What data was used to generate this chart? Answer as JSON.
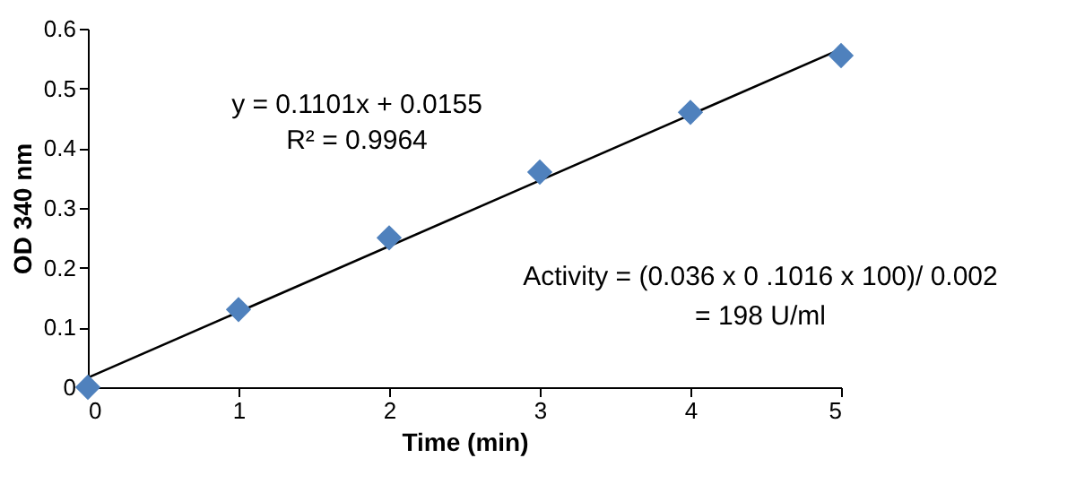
{
  "chart_data": {
    "type": "scatter",
    "xlabel": "Time (min)",
    "ylabel": "OD 340 nm",
    "x": [
      0,
      1,
      2,
      3,
      4,
      5
    ],
    "series": [
      {
        "color": "#4f81bd",
        "marker": "diamond",
        "values": [
          0,
          0.13,
          0.25,
          0.36,
          0.46,
          0.555
        ]
      },
      {
        "type": "line",
        "color": "#000000",
        "x": [
          0,
          5
        ],
        "values": [
          0.016,
          0.566
        ],
        "line_style": "solid"
      }
    ],
    "xlim": [
      0,
      5
    ],
    "xticks": [
      0,
      1,
      2,
      3,
      4,
      5
    ],
    "ylim": [
      0,
      0.6
    ],
    "yticks": [
      0,
      0.1,
      0.2,
      0.3,
      0.4,
      0.5,
      0.6
    ],
    "grid": false,
    "annotations": [
      "y = 0.1101x + 0.0155",
      "R² = 0.9964",
      "Activity = (0.036 x 0 .1016 x 100)/ 0.002",
      "= 198 U/ml"
    ]
  }
}
